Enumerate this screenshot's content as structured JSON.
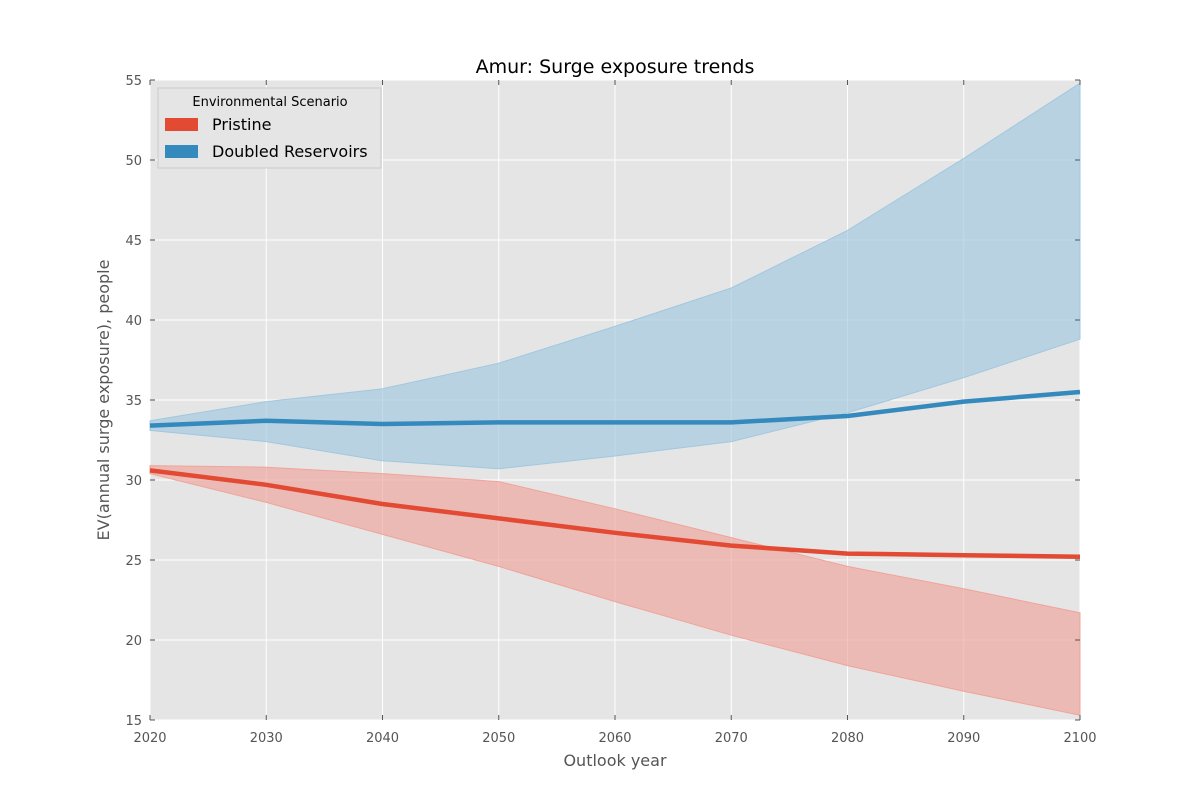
{
  "chart_data": {
    "type": "line",
    "title": "Amur: Surge exposure trends",
    "xlabel": "Outlook year",
    "ylabel": "EV(annual surge exposure), people",
    "xlim": [
      2020,
      2100
    ],
    "ylim": [
      15,
      55
    ],
    "xticks": [
      2020,
      2030,
      2040,
      2050,
      2060,
      2070,
      2080,
      2090,
      2100
    ],
    "yticks": [
      15,
      20,
      25,
      30,
      35,
      40,
      45,
      50,
      55
    ],
    "grid": true,
    "legend": {
      "title": "Environmental Scenario",
      "placement": "top-left"
    },
    "x": [
      2020,
      2030,
      2040,
      2050,
      2060,
      2070,
      2080,
      2090,
      2100
    ],
    "series": [
      {
        "name": "Pristine",
        "color": "#e24a33",
        "band_color": "#f0a39a",
        "values": [
          30.6,
          29.7,
          28.5,
          27.6,
          26.7,
          25.9,
          25.4,
          25.3,
          25.2
        ],
        "lower": [
          30.4,
          28.6,
          26.6,
          24.6,
          22.4,
          20.3,
          18.4,
          16.8,
          15.3
        ],
        "upper": [
          30.9,
          30.8,
          30.4,
          29.9,
          28.2,
          26.4,
          24.6,
          23.2,
          21.7
        ]
      },
      {
        "name": "Doubled Reservoirs",
        "color": "#348abd",
        "band_color": "#a0c8e0",
        "values": [
          33.4,
          33.7,
          33.5,
          33.6,
          33.6,
          33.6,
          34.0,
          34.9,
          35.5
        ],
        "lower": [
          33.1,
          32.4,
          31.2,
          30.7,
          31.5,
          32.4,
          34.2,
          36.4,
          38.8
        ],
        "upper": [
          33.7,
          34.9,
          35.7,
          37.3,
          39.6,
          42.0,
          45.6,
          50.1,
          54.8
        ]
      }
    ]
  }
}
